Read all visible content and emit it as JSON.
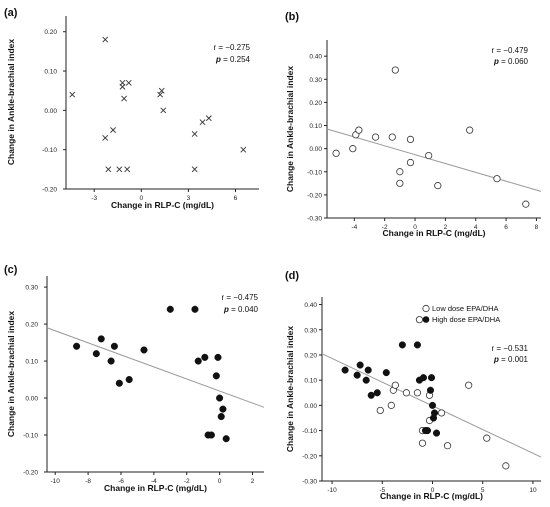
{
  "chart_data": [
    {
      "panel_label": "(a)",
      "type": "scatter",
      "xlabel": "Change in RLP-C (mg/dL)",
      "ylabel": "Change in Ankle-brachial index",
      "xlim": [
        -4.8,
        7.5
      ],
      "ylim": [
        -0.2,
        0.24
      ],
      "xticks": [
        -3,
        0,
        3,
        6
      ],
      "yticks": [
        -0.2,
        -0.1,
        0.0,
        0.1,
        0.2
      ],
      "ytick_labels": [
        "-0.20",
        "-0.10",
        "0.00",
        "0.10",
        "0.20"
      ],
      "stats": {
        "r": "r = −0.275",
        "p_label": "p",
        "p_value": " = 0.254"
      },
      "regression": null,
      "series": [
        {
          "marker": "x",
          "points": [
            [
              -4.4,
              0.04
            ],
            [
              -2.3,
              0.18
            ],
            [
              -2.3,
              -0.07
            ],
            [
              -2.1,
              -0.15
            ],
            [
              -1.8,
              -0.05
            ],
            [
              -1.4,
              -0.15
            ],
            [
              -1.2,
              0.07
            ],
            [
              -1.2,
              0.06
            ],
            [
              -1.1,
              0.03
            ],
            [
              -0.9,
              -0.15
            ],
            [
              -0.8,
              0.07
            ],
            [
              1.2,
              0.04
            ],
            [
              1.3,
              0.05
            ],
            [
              1.4,
              0.0
            ],
            [
              3.4,
              -0.06
            ],
            [
              3.4,
              -0.15
            ],
            [
              3.9,
              -0.03
            ],
            [
              4.3,
              -0.02
            ],
            [
              6.5,
              -0.1
            ]
          ]
        }
      ]
    },
    {
      "panel_label": "(b)",
      "type": "scatter",
      "xlabel": "Change in RLP-C (mg/dL)",
      "ylabel": "Change in Ankle-brachial index",
      "xlim": [
        -5.8,
        8.3
      ],
      "ylim": [
        -0.3,
        0.47
      ],
      "xticks": [
        -4,
        -2,
        0,
        2,
        4,
        6,
        8
      ],
      "yticks": [
        -0.3,
        -0.2,
        -0.1,
        0.0,
        0.1,
        0.2,
        0.3,
        0.4
      ],
      "ytick_labels": [
        "-0.30",
        "-0.20",
        "-0.10",
        "0.00",
        "0.10",
        "0.20",
        "0.30",
        "0.40"
      ],
      "stats": {
        "r": "r = −0.479",
        "p_label": "p",
        "p_value": " = 0.060"
      },
      "regression": {
        "x": [
          -5.8,
          8.3
        ],
        "y": [
          0.085,
          -0.185
        ]
      },
      "series": [
        {
          "marker": "open-circle",
          "points": [
            [
              -5.2,
              -0.02
            ],
            [
              -4.1,
              0.0
            ],
            [
              -3.9,
              0.06
            ],
            [
              -3.7,
              0.08
            ],
            [
              -2.6,
              0.05
            ],
            [
              -1.5,
              0.05
            ],
            [
              -1.3,
              0.34
            ],
            [
              -1.0,
              -0.15
            ],
            [
              -1.0,
              -0.1
            ],
            [
              -0.3,
              0.04
            ],
            [
              -0.3,
              -0.06
            ],
            [
              0.9,
              -0.03
            ],
            [
              1.5,
              -0.16
            ],
            [
              3.6,
              0.08
            ],
            [
              5.4,
              -0.13
            ],
            [
              7.3,
              -0.24
            ]
          ]
        }
      ]
    },
    {
      "panel_label": "(c)",
      "type": "scatter",
      "xlabel": "Change in RLP-C (mg/dL)",
      "ylabel": "Change in Ankle-brachial index",
      "xlim": [
        -10.5,
        2.7
      ],
      "ylim": [
        -0.2,
        0.33
      ],
      "xticks": [
        -10,
        -8,
        -6,
        -4,
        -2,
        0,
        2
      ],
      "yticks": [
        -0.2,
        -0.1,
        0.0,
        0.1,
        0.2,
        0.3
      ],
      "ytick_labels": [
        "-0.20",
        "-0.10",
        "0.00",
        "0.10",
        "0.20",
        "0.30"
      ],
      "stats": {
        "r": "r = −0.475",
        "p_label": "p",
        "p_value": " = 0.040"
      },
      "regression": {
        "x": [
          -10.5,
          2.7
        ],
        "y": [
          0.19,
          -0.025
        ]
      },
      "series": [
        {
          "marker": "filled-circle",
          "points": [
            [
              -8.7,
              0.14
            ],
            [
              -7.5,
              0.12
            ],
            [
              -7.2,
              0.16
            ],
            [
              -6.6,
              0.1
            ],
            [
              -6.4,
              0.14
            ],
            [
              -6.1,
              0.04
            ],
            [
              -5.5,
              0.05
            ],
            [
              -4.6,
              0.13
            ],
            [
              -3.0,
              0.24
            ],
            [
              -1.5,
              0.24
            ],
            [
              -1.3,
              0.1
            ],
            [
              -0.9,
              0.11
            ],
            [
              -0.7,
              -0.1
            ],
            [
              -0.5,
              -0.1
            ],
            [
              -0.2,
              0.06
            ],
            [
              -0.1,
              0.11
            ],
            [
              0.0,
              0.0
            ],
            [
              0.1,
              -0.05
            ],
            [
              0.2,
              -0.03
            ],
            [
              0.4,
              -0.11
            ]
          ]
        }
      ]
    },
    {
      "panel_label": "(d)",
      "type": "scatter",
      "xlabel": "Change in RLP-C (mg/dL)",
      "ylabel": "Change in Ankle-brachial index",
      "xlim": [
        -11,
        10.8
      ],
      "ylim": [
        -0.3,
        0.43
      ],
      "xticks": [
        -10,
        -5,
        0,
        5,
        10
      ],
      "yticks": [
        -0.3,
        -0.2,
        -0.1,
        0.0,
        0.1,
        0.2,
        0.3,
        0.4
      ],
      "ytick_labels": [
        "-0.30",
        "-0.20",
        "-0.10",
        "0.00",
        "0.10",
        "0.20",
        "0.30",
        "0.40"
      ],
      "stats": {
        "r": "r = −0.531",
        "p_label": "p",
        "p_value": " = 0.001"
      },
      "regression": {
        "x": [
          -11,
          10.8
        ],
        "y": [
          0.205,
          -0.205
        ]
      },
      "legend": {
        "position": "top-right",
        "entries": [
          {
            "label": "Low dose EPA/DHA",
            "marker": "open-circle"
          },
          {
            "label": "High dose EPA/DHA",
            "marker": "filled-circle"
          }
        ]
      },
      "series": [
        {
          "name": "Low dose EPA/DHA",
          "marker": "open-circle",
          "points": [
            [
              -5.2,
              -0.02
            ],
            [
              -4.1,
              0.0
            ],
            [
              -3.9,
              0.06
            ],
            [
              -3.7,
              0.08
            ],
            [
              -2.6,
              0.05
            ],
            [
              -1.5,
              0.05
            ],
            [
              -1.3,
              0.34
            ],
            [
              -1.0,
              -0.15
            ],
            [
              -1.0,
              -0.1
            ],
            [
              -0.3,
              0.04
            ],
            [
              -0.3,
              -0.06
            ],
            [
              0.9,
              -0.03
            ],
            [
              1.5,
              -0.16
            ],
            [
              3.6,
              0.08
            ],
            [
              5.4,
              -0.13
            ],
            [
              7.3,
              -0.24
            ]
          ]
        },
        {
          "name": "High dose EPA/DHA",
          "marker": "filled-circle",
          "points": [
            [
              -8.7,
              0.14
            ],
            [
              -7.5,
              0.12
            ],
            [
              -7.2,
              0.16
            ],
            [
              -6.6,
              0.1
            ],
            [
              -6.4,
              0.14
            ],
            [
              -6.1,
              0.04
            ],
            [
              -5.5,
              0.05
            ],
            [
              -4.6,
              0.13
            ],
            [
              -3.0,
              0.24
            ],
            [
              -1.5,
              0.24
            ],
            [
              -1.3,
              0.1
            ],
            [
              -0.9,
              0.11
            ],
            [
              -0.7,
              -0.1
            ],
            [
              -0.5,
              -0.1
            ],
            [
              -0.2,
              0.06
            ],
            [
              -0.1,
              0.11
            ],
            [
              0.0,
              0.0
            ],
            [
              0.1,
              -0.05
            ],
            [
              0.2,
              -0.03
            ],
            [
              0.4,
              -0.11
            ]
          ]
        }
      ]
    }
  ]
}
